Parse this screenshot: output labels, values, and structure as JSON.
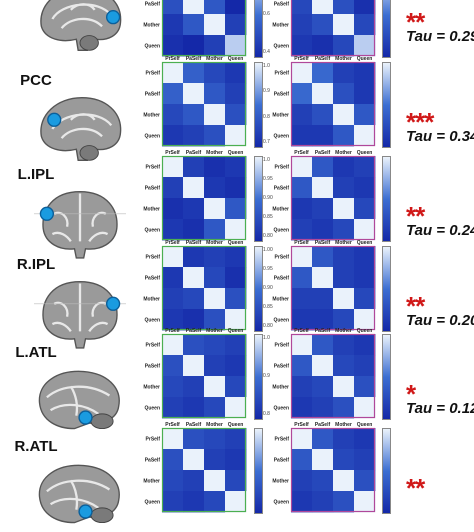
{
  "colors": {
    "panel_left_border": "#4caf50",
    "panel_right_border": "#b0489a",
    "marker": "#1a9be0",
    "stars": "#d01818",
    "cmap_low": "#1428a8",
    "cmap_high": "#eaf2fb"
  },
  "matrix_labels": [
    "PrSelf",
    "PaSelf",
    "Mother",
    "Queen"
  ],
  "rows": [
    {
      "region": "",
      "view": "sagittal",
      "stars": "**",
      "tau": "Tau = 0.29",
      "cbar_labels": [
        "0.8",
        "0.6",
        "0.4"
      ],
      "left_matrix": [
        [
          1,
          0.45,
          0.3,
          0.25
        ],
        [
          0.45,
          1,
          0.5,
          0.2
        ],
        [
          0.3,
          0.5,
          1,
          0.35
        ],
        [
          0.25,
          0.2,
          0.35,
          0.9
        ]
      ],
      "right_matrix": [
        [
          1,
          0.4,
          0.35,
          0.3
        ],
        [
          0.4,
          1,
          0.45,
          0.25
        ],
        [
          0.35,
          0.45,
          1,
          0.4
        ],
        [
          0.3,
          0.25,
          0.4,
          0.9
        ]
      ]
    },
    {
      "region": "PCC",
      "view": "sagittal",
      "stars": "***",
      "tau": "Tau = 0.34",
      "cbar_labels": [
        "1.0",
        "0.9",
        "0.8",
        "0.7"
      ],
      "left_matrix": [
        [
          1,
          0.55,
          0.4,
          0.3
        ],
        [
          0.55,
          1,
          0.5,
          0.35
        ],
        [
          0.4,
          0.5,
          1,
          0.45
        ],
        [
          0.3,
          0.35,
          0.45,
          1
        ]
      ],
      "right_matrix": [
        [
          1,
          0.6,
          0.35,
          0.3
        ],
        [
          0.6,
          1,
          0.45,
          0.3
        ],
        [
          0.35,
          0.45,
          1,
          0.5
        ],
        [
          0.3,
          0.3,
          0.5,
          1
        ]
      ]
    },
    {
      "region": "L.IPL",
      "view": "coronal",
      "stars": "**",
      "tau": "Tau = 0.24",
      "cbar_labels": [
        "1.0",
        "0.95",
        "0.90",
        "0.85",
        "0.80"
      ],
      "left_matrix": [
        [
          1,
          0.35,
          0.25,
          0.3
        ],
        [
          0.35,
          1,
          0.3,
          0.25
        ],
        [
          0.25,
          0.3,
          1,
          0.5
        ],
        [
          0.3,
          0.25,
          0.5,
          1
        ]
      ],
      "right_matrix": [
        [
          1,
          0.5,
          0.3,
          0.35
        ],
        [
          0.5,
          1,
          0.35,
          0.3
        ],
        [
          0.3,
          0.35,
          1,
          0.4
        ],
        [
          0.35,
          0.3,
          0.4,
          1
        ]
      ]
    },
    {
      "region": "R.IPL",
      "view": "coronal",
      "stars": "**",
      "tau": "Tau = 0.20",
      "cbar_labels": [
        "1.00",
        "0.95",
        "0.90",
        "0.85",
        "0.80"
      ],
      "left_matrix": [
        [
          1,
          0.3,
          0.35,
          0.3
        ],
        [
          0.3,
          1,
          0.4,
          0.25
        ],
        [
          0.35,
          0.4,
          1,
          0.45
        ],
        [
          0.3,
          0.25,
          0.45,
          1
        ]
      ],
      "right_matrix": [
        [
          1,
          0.5,
          0.35,
          0.3
        ],
        [
          0.5,
          1,
          0.35,
          0.3
        ],
        [
          0.35,
          0.35,
          1,
          0.4
        ],
        [
          0.3,
          0.3,
          0.4,
          1
        ]
      ]
    },
    {
      "region": "L.ATL",
      "view": "lateral",
      "stars": "*",
      "tau": "Tau = 0.12",
      "cbar_labels": [
        "1.0",
        "0.9",
        "0.8"
      ],
      "left_matrix": [
        [
          1,
          0.45,
          0.4,
          0.35
        ],
        [
          0.45,
          1,
          0.35,
          0.3
        ],
        [
          0.4,
          0.35,
          1,
          0.4
        ],
        [
          0.35,
          0.3,
          0.4,
          1
        ]
      ],
      "right_matrix": [
        [
          1,
          0.5,
          0.35,
          0.3
        ],
        [
          0.5,
          1,
          0.4,
          0.35
        ],
        [
          0.35,
          0.4,
          1,
          0.45
        ],
        [
          0.3,
          0.35,
          0.45,
          1
        ]
      ]
    },
    {
      "region": "R.ATL",
      "view": "lateral",
      "stars": "**",
      "tau": "",
      "cbar_labels": [],
      "left_matrix": [
        [
          1,
          0.45,
          0.4,
          0.35
        ],
        [
          0.45,
          1,
          0.35,
          0.3
        ],
        [
          0.4,
          0.35,
          1,
          0.4
        ],
        [
          0.35,
          0.3,
          0.4,
          1
        ]
      ],
      "right_matrix": [
        [
          1,
          0.5,
          0.35,
          0.3
        ],
        [
          0.5,
          1,
          0.4,
          0.35
        ],
        [
          0.35,
          0.4,
          1,
          0.45
        ],
        [
          0.3,
          0.35,
          0.45,
          1
        ]
      ]
    }
  ]
}
